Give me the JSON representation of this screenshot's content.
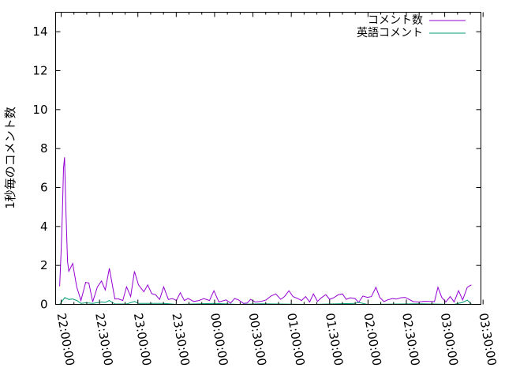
{
  "chart_data": {
    "type": "line",
    "title": "",
    "xlabel": "",
    "ylabel": "1秒毎のコメント数",
    "xlim": [
      "21:55:40",
      "03:28:20"
    ],
    "ylim": [
      0,
      15
    ],
    "xticks": [
      "22:00:00",
      "22:30:00",
      "23:00:00",
      "23:30:00",
      "00:00:00",
      "00:30:00",
      "01:00:00",
      "01:30:00",
      "02:00:00",
      "02:30:00",
      "03:00:00",
      "03:30:00"
    ],
    "yticks": [
      0,
      2,
      4,
      6,
      8,
      10,
      12,
      14
    ],
    "grid": false,
    "legend_position": "top-right",
    "series": [
      {
        "name": "コメント数",
        "color": "#9400d3",
        "x": [
          "21:58:50",
          "21:59:50",
          "22:00:30",
          "22:01:00",
          "22:01:50",
          "22:02:40",
          "22:03:20",
          "22:03:50",
          "22:05:00",
          "22:06:00",
          "22:09:00",
          "22:12:10",
          "22:15:30",
          "22:19:10",
          "22:21:40",
          "22:24:40",
          "22:28:20",
          "22:31:30",
          "22:34:30",
          "22:37:40",
          "22:42:00",
          "22:45:00",
          "22:48:10",
          "22:51:10",
          "22:54:20",
          "22:57:20",
          "23:00:30",
          "23:04:40",
          "23:07:40",
          "23:10:50",
          "23:13:50",
          "23:17:00",
          "23:20:10",
          "23:23:50",
          "23:27:00",
          "23:30:10",
          "23:33:10",
          "23:36:20",
          "23:39:20",
          "23:43:40",
          "23:47:50",
          "23:51:40",
          "23:56:00",
          "23:59:30",
          "00:03:20",
          "00:09:00",
          "00:12:30",
          "00:15:40",
          "00:18:40",
          "00:22:40",
          "00:25:30",
          "00:28:10",
          "00:31:50",
          "00:36:10",
          "00:40:20",
          "00:44:10",
          "00:47:50",
          "00:51:40",
          "00:54:40",
          "00:58:10",
          "01:01:20",
          "01:05:00",
          "01:08:00",
          "01:11:10",
          "01:14:20",
          "01:17:20",
          "01:20:30",
          "01:23:30",
          "01:27:00",
          "01:30:00",
          "01:33:10",
          "01:36:50",
          "01:40:00",
          "01:43:00",
          "01:46:10",
          "01:49:50",
          "01:52:40",
          "01:56:00",
          "01:59:30",
          "02:02:40",
          "02:06:10",
          "02:09:10",
          "02:12:30",
          "02:15:20",
          "02:19:10",
          "02:22:10",
          "02:25:40",
          "02:29:00",
          "02:32:00",
          "02:35:30",
          "02:39:40",
          "02:43:50",
          "02:47:50",
          "02:52:00",
          "02:54:40",
          "02:57:40",
          "03:00:50",
          "03:04:20",
          "03:07:20",
          "03:10:50",
          "03:14:00",
          "03:17:40",
          "03:20:50"
        ],
        "values": [
          0.93,
          2.57,
          3.7,
          4.8,
          7.0,
          7.55,
          5.8,
          4.6,
          2.2,
          1.7,
          2.1,
          0.9,
          0.2,
          1.13,
          1.1,
          0.13,
          0.9,
          1.2,
          0.74,
          1.85,
          0.28,
          0.28,
          0.2,
          0.9,
          0.4,
          1.7,
          1.0,
          0.65,
          1.0,
          0.55,
          0.5,
          0.25,
          0.9,
          0.25,
          0.3,
          0.2,
          0.6,
          0.2,
          0.3,
          0.15,
          0.2,
          0.3,
          0.2,
          0.7,
          0.12,
          0.23,
          0.07,
          0.3,
          0.23,
          0.05,
          0.07,
          0.26,
          0.12,
          0.15,
          0.23,
          0.43,
          0.54,
          0.26,
          0.4,
          0.7,
          0.4,
          0.3,
          0.2,
          0.4,
          0.12,
          0.54,
          0.16,
          0.34,
          0.5,
          0.26,
          0.34,
          0.5,
          0.54,
          0.26,
          0.34,
          0.3,
          0.1,
          0.43,
          0.36,
          0.4,
          0.88,
          0.36,
          0.14,
          0.23,
          0.3,
          0.27,
          0.34,
          0.36,
          0.26,
          0.14,
          0.12,
          0.16,
          0.15,
          0.14,
          0.88,
          0.36,
          0.12,
          0.4,
          0.12,
          0.7,
          0.23,
          0.88,
          1.0
        ]
      },
      {
        "name": "英語コメント",
        "color": "#009e73",
        "x": [
          "21:58:50",
          "22:02:50",
          "22:06:10",
          "22:09:00",
          "22:12:20",
          "22:15:30",
          "22:19:10",
          "22:24:40",
          "22:31:30",
          "22:34:30",
          "22:37:40",
          "22:42:00",
          "22:51:10",
          "22:57:20",
          "23:00:30",
          "23:10:50",
          "23:20:10",
          "23:30:10",
          "23:59:30",
          "00:18:40",
          "00:36:10",
          "01:17:20",
          "01:49:50",
          "01:52:40",
          "01:59:30",
          "02:39:40",
          "03:07:20",
          "03:14:00",
          "03:17:40",
          "03:20:50"
        ],
        "values": [
          0,
          0.35,
          0.25,
          0.28,
          0.2,
          0.05,
          0.08,
          0.05,
          0.12,
          0.1,
          0.2,
          0.02,
          0.02,
          0.15,
          0.05,
          0.05,
          0.05,
          0,
          0.05,
          0,
          0.03,
          0,
          0.05,
          0.1,
          0,
          0.03,
          0,
          0.1,
          0.22,
          0.03
        ]
      }
    ]
  }
}
